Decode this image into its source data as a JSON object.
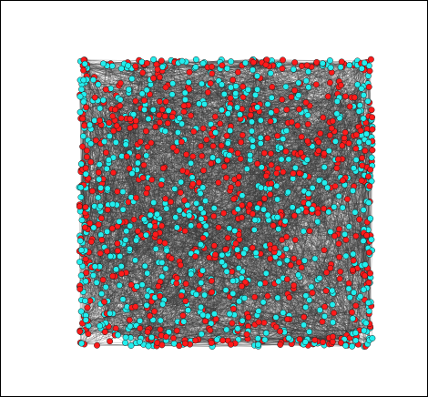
{
  "figure": {
    "type": "network-graph",
    "background_color": "#ffffff",
    "border_color": "#000000",
    "edge_color": "#3a3a3a",
    "node_colors": {
      "group_a": "#ff1a1a",
      "group_b": "#22eeee"
    },
    "node_outline_color": "#1a1a1a",
    "node_count_approx": 1400,
    "edge_count_approx": 9000,
    "group_split": [
      0.5,
      0.5
    ]
  }
}
